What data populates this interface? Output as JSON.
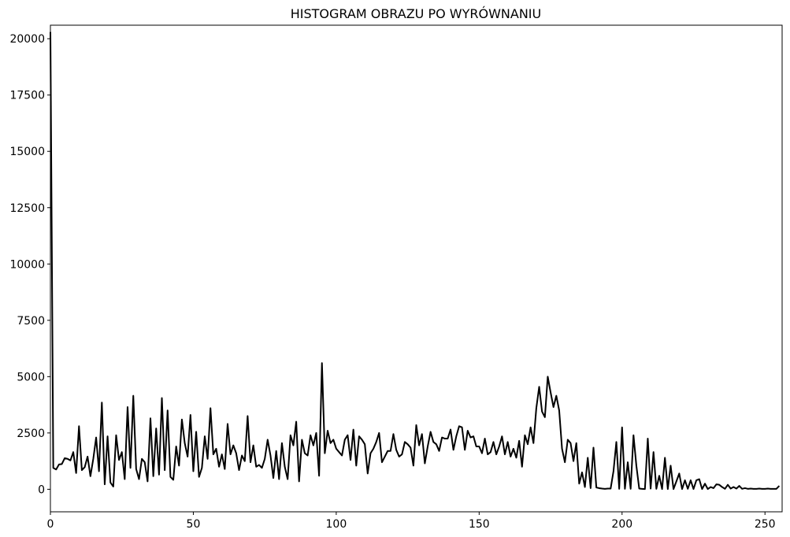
{
  "chart_data": {
    "type": "line",
    "title": "HISTOGRAM OBRAZU PO WYRÓWNANIU",
    "xlabel": "",
    "ylabel": "",
    "xlim": [
      0,
      256
    ],
    "ylim": [
      -1000,
      20600
    ],
    "x_ticks": [
      0,
      50,
      100,
      150,
      200,
      250
    ],
    "y_ticks": [
      0,
      2500,
      5000,
      7500,
      10000,
      12500,
      15000,
      17500,
      20000
    ],
    "grid": false,
    "line_color": "#000000",
    "series": [
      {
        "values": [
          20300,
          950,
          880,
          1100,
          1120,
          1380,
          1350,
          1280,
          1650,
          720,
          2800,
          850,
          980,
          1450,
          580,
          1350,
          2300,
          800,
          3850,
          220,
          2350,
          300,
          120,
          2400,
          1300,
          1650,
          450,
          3650,
          950,
          4150,
          900,
          450,
          1350,
          1200,
          350,
          3150,
          580,
          2700,
          650,
          4050,
          850,
          3500,
          550,
          420,
          1900,
          1050,
          3100,
          2050,
          1450,
          3300,
          800,
          2550,
          550,
          950,
          2350,
          1350,
          3600,
          1550,
          1800,
          1000,
          1550,
          900,
          2900,
          1550,
          1950,
          1600,
          850,
          1500,
          1250,
          3250,
          1200,
          1950,
          1000,
          1080,
          950,
          1350,
          2200,
          1500,
          500,
          1700,
          450,
          2050,
          1000,
          450,
          2400,
          1950,
          3000,
          350,
          2200,
          1600,
          1500,
          2400,
          1950,
          2500,
          600,
          5600,
          1600,
          2600,
          2050,
          2200,
          1800,
          1650,
          1500,
          2200,
          2400,
          1300,
          2650,
          1050,
          2350,
          2200,
          2000,
          700,
          1600,
          1800,
          2100,
          2500,
          1200,
          1450,
          1700,
          1700,
          2450,
          1750,
          1450,
          1550,
          2100,
          2000,
          1850,
          1050,
          2850,
          1950,
          2450,
          1150,
          1900,
          2550,
          2100,
          2000,
          1700,
          2300,
          2250,
          2250,
          2650,
          1750,
          2350,
          2800,
          2750,
          1750,
          2600,
          2300,
          2350,
          1900,
          1900,
          1600,
          2250,
          1550,
          1650,
          2100,
          1550,
          1900,
          2350,
          1550,
          2100,
          1450,
          1800,
          1400,
          2150,
          1000,
          2400,
          2000,
          2750,
          2050,
          3600,
          4550,
          3450,
          3200,
          5000,
          4300,
          3650,
          4150,
          3500,
          1800,
          1200,
          2200,
          2050,
          1250,
          2050,
          250,
          750,
          100,
          1400,
          50,
          1850,
          80,
          50,
          30,
          20,
          30,
          30,
          800,
          2100,
          20,
          2750,
          20,
          1200,
          20,
          2400,
          1050,
          30,
          20,
          10,
          2250,
          30,
          1650,
          20,
          600,
          10,
          1400,
          10,
          1050,
          10,
          350,
          700,
          10,
          400,
          20,
          400,
          10,
          400,
          450,
          10,
          250,
          10,
          100,
          50,
          220,
          200,
          100,
          20,
          200,
          30,
          100,
          30,
          150,
          20,
          50,
          20,
          30,
          20,
          20,
          30,
          20,
          20,
          30,
          20,
          20,
          20,
          150
        ]
      }
    ]
  }
}
